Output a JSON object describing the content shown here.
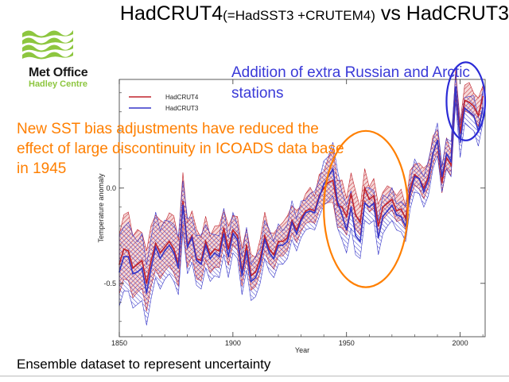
{
  "header": {
    "title_main": "HadCRUT4",
    "title_sub": "(=HadSST3 +CRUTEM4)",
    "title_tail": " vs HadCRUT3"
  },
  "logo": {
    "name": "Met Office",
    "subname": "Hadley Centre",
    "icon": "met-office-wave-logo",
    "color": "#8dc63f"
  },
  "annotations": {
    "russia": "Addition of extra Russian and Arctic stations",
    "sst": "New SST bias adjustments have reduced the effect of large discontinuity in ICOADS data base in 1945"
  },
  "footer": {
    "text": "Ensemble dataset to represent uncertainty"
  },
  "chart_data": {
    "type": "line",
    "xlabel": "Year",
    "ylabel": "Temperature anomaly",
    "xlim": [
      1850,
      2011
    ],
    "ylim": [
      -0.78,
      0.57
    ],
    "xticks": [
      1850,
      1900,
      1950,
      2000
    ],
    "yticks": [
      0.0,
      -0.5
    ],
    "ytick_labels": [
      "0.0",
      "-0.5"
    ],
    "grid": false,
    "legend_position": "top-left",
    "x": [
      1850,
      1852,
      1854,
      1856,
      1858,
      1860,
      1862,
      1864,
      1866,
      1868,
      1870,
      1872,
      1874,
      1876,
      1878,
      1880,
      1882,
      1884,
      1886,
      1888,
      1890,
      1892,
      1894,
      1896,
      1898,
      1900,
      1902,
      1904,
      1906,
      1908,
      1910,
      1912,
      1914,
      1916,
      1918,
      1920,
      1922,
      1924,
      1926,
      1928,
      1930,
      1932,
      1934,
      1936,
      1938,
      1940,
      1942,
      1944,
      1946,
      1948,
      1950,
      1952,
      1954,
      1956,
      1958,
      1960,
      1962,
      1964,
      1966,
      1968,
      1970,
      1972,
      1974,
      1976,
      1978,
      1980,
      1982,
      1984,
      1986,
      1988,
      1990,
      1992,
      1994,
      1996,
      1998,
      2000,
      2002,
      2004,
      2006,
      2008,
      2010
    ],
    "series": [
      {
        "name": "HadCRUT4",
        "color": "#c0222c",
        "values": [
          -0.4,
          -0.32,
          -0.33,
          -0.42,
          -0.4,
          -0.38,
          -0.5,
          -0.38,
          -0.29,
          -0.34,
          -0.31,
          -0.28,
          -0.32,
          -0.4,
          -0.07,
          -0.3,
          -0.25,
          -0.37,
          -0.38,
          -0.28,
          -0.35,
          -0.32,
          -0.33,
          -0.21,
          -0.32,
          -0.22,
          -0.25,
          -0.44,
          -0.3,
          -0.46,
          -0.44,
          -0.37,
          -0.25,
          -0.32,
          -0.35,
          -0.28,
          -0.28,
          -0.26,
          -0.17,
          -0.22,
          -0.16,
          -0.12,
          -0.11,
          -0.12,
          -0.04,
          0.0,
          0.03,
          0.04,
          -0.09,
          -0.1,
          -0.15,
          -0.03,
          -0.14,
          -0.18,
          0.0,
          -0.06,
          -0.04,
          -0.2,
          -0.1,
          -0.08,
          -0.06,
          -0.12,
          -0.11,
          -0.16,
          0.0,
          0.07,
          0.05,
          0.0,
          0.06,
          0.18,
          0.25,
          0.03,
          0.16,
          0.12,
          0.53,
          0.29,
          0.46,
          0.45,
          0.43,
          0.38,
          0.48
        ]
      },
      {
        "name": "HadCRUT3",
        "color": "#3535c8",
        "values": [
          -0.44,
          -0.36,
          -0.36,
          -0.45,
          -0.44,
          -0.42,
          -0.55,
          -0.42,
          -0.31,
          -0.37,
          -0.33,
          -0.3,
          -0.34,
          -0.42,
          -0.09,
          -0.31,
          -0.26,
          -0.38,
          -0.4,
          -0.3,
          -0.37,
          -0.34,
          -0.36,
          -0.24,
          -0.36,
          -0.24,
          -0.27,
          -0.46,
          -0.33,
          -0.49,
          -0.47,
          -0.4,
          -0.27,
          -0.34,
          -0.37,
          -0.3,
          -0.3,
          -0.28,
          -0.18,
          -0.24,
          -0.17,
          -0.13,
          -0.12,
          -0.13,
          -0.05,
          0.02,
          0.06,
          0.1,
          -0.07,
          -0.14,
          -0.22,
          -0.1,
          -0.25,
          -0.28,
          -0.08,
          -0.1,
          -0.08,
          -0.26,
          -0.15,
          -0.12,
          -0.09,
          -0.14,
          -0.15,
          -0.2,
          -0.03,
          0.06,
          0.05,
          -0.02,
          0.04,
          0.18,
          0.25,
          0.06,
          0.18,
          0.14,
          0.53,
          0.24,
          0.42,
          0.4,
          0.38,
          0.3,
          0.42
        ]
      }
    ],
    "uncertainty_halfwidth": [
      0.18,
      0.18,
      0.18,
      0.18,
      0.17,
      0.17,
      0.17,
      0.16,
      0.16,
      0.16,
      0.15,
      0.15,
      0.15,
      0.14,
      0.14,
      0.14,
      0.13,
      0.13,
      0.13,
      0.12,
      0.12,
      0.12,
      0.11,
      0.11,
      0.11,
      0.1,
      0.1,
      0.1,
      0.1,
      0.1,
      0.1,
      0.1,
      0.1,
      0.1,
      0.1,
      0.1,
      0.1,
      0.09,
      0.09,
      0.09,
      0.09,
      0.09,
      0.09,
      0.09,
      0.1,
      0.11,
      0.13,
      0.14,
      0.14,
      0.13,
      0.12,
      0.11,
      0.1,
      0.09,
      0.09,
      0.09,
      0.09,
      0.09,
      0.09,
      0.08,
      0.08,
      0.08,
      0.08,
      0.08,
      0.08,
      0.08,
      0.08,
      0.08,
      0.08,
      0.08,
      0.08,
      0.08,
      0.08,
      0.08,
      0.08,
      0.08,
      0.08,
      0.08,
      0.08,
      0.08,
      0.08
    ],
    "highlights": [
      {
        "color": "#ff7f00",
        "x_range": [
          1940,
          1977
        ],
        "y_range": [
          -0.52,
          0.3
        ]
      },
      {
        "color": "#2b2bd6",
        "x_range": [
          1994,
          2011
        ],
        "y_range": [
          0.25,
          0.66
        ]
      }
    ]
  }
}
